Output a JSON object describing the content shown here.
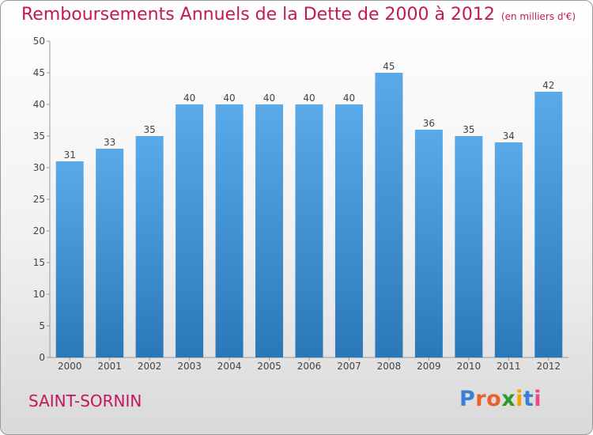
{
  "title": "Remboursements Annuels de la Dette de 2000 à 2012",
  "unit_note": "(en milliers d'€)",
  "commune": "SAINT-SORNIN",
  "logo": {
    "letters": [
      "P",
      "r",
      "o",
      "x",
      "i",
      "t",
      "i"
    ],
    "colors": [
      "#3a7fd5",
      "#e8622a",
      "#e8622a",
      "#2e9a2e",
      "#f0a500",
      "#3a7fd5",
      "#e84a8a"
    ]
  },
  "colors": {
    "bar_light": "#5aaaea",
    "bar_dark": "#2a78b8",
    "title": "#c2185b"
  },
  "chart_data": {
    "type": "bar",
    "categories": [
      "2000",
      "2001",
      "2002",
      "2003",
      "2004",
      "2005",
      "2006",
      "2007",
      "2008",
      "2009",
      "2010",
      "2011",
      "2012"
    ],
    "values": [
      31,
      33,
      35,
      40,
      40,
      40,
      40,
      40,
      45,
      36,
      35,
      34,
      42
    ],
    "ylim": [
      0,
      50
    ],
    "yticks": [
      0,
      5,
      10,
      15,
      20,
      25,
      30,
      35,
      40,
      45,
      50
    ],
    "grid": false,
    "data_labels": true
  }
}
